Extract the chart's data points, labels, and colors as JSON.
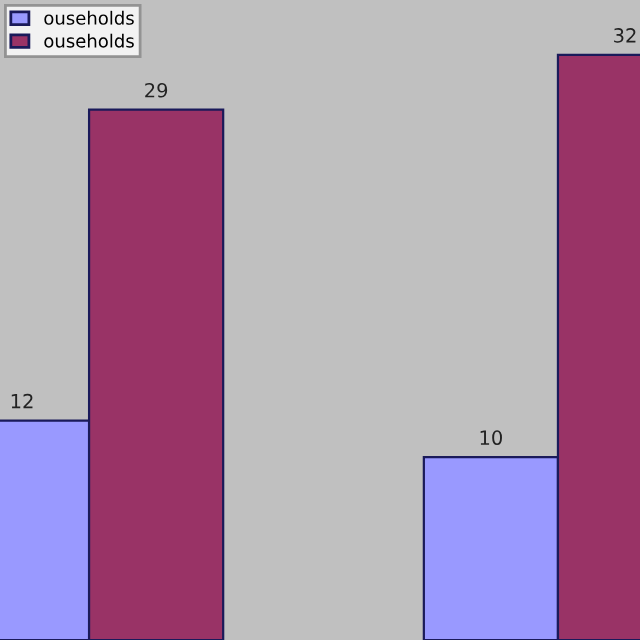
{
  "chart_data": {
    "type": "bar",
    "categories": [
      null,
      null
    ],
    "series": [
      {
        "name": "ouseholds",
        "color": "#9999ff",
        "values": [
          12,
          10
        ]
      },
      {
        "name": "ouseholds",
        "color": "#993366",
        "values": [
          29,
          32
        ]
      }
    ],
    "ylim": [
      0,
      35
    ],
    "data_labels": true,
    "legend": "top left"
  }
}
